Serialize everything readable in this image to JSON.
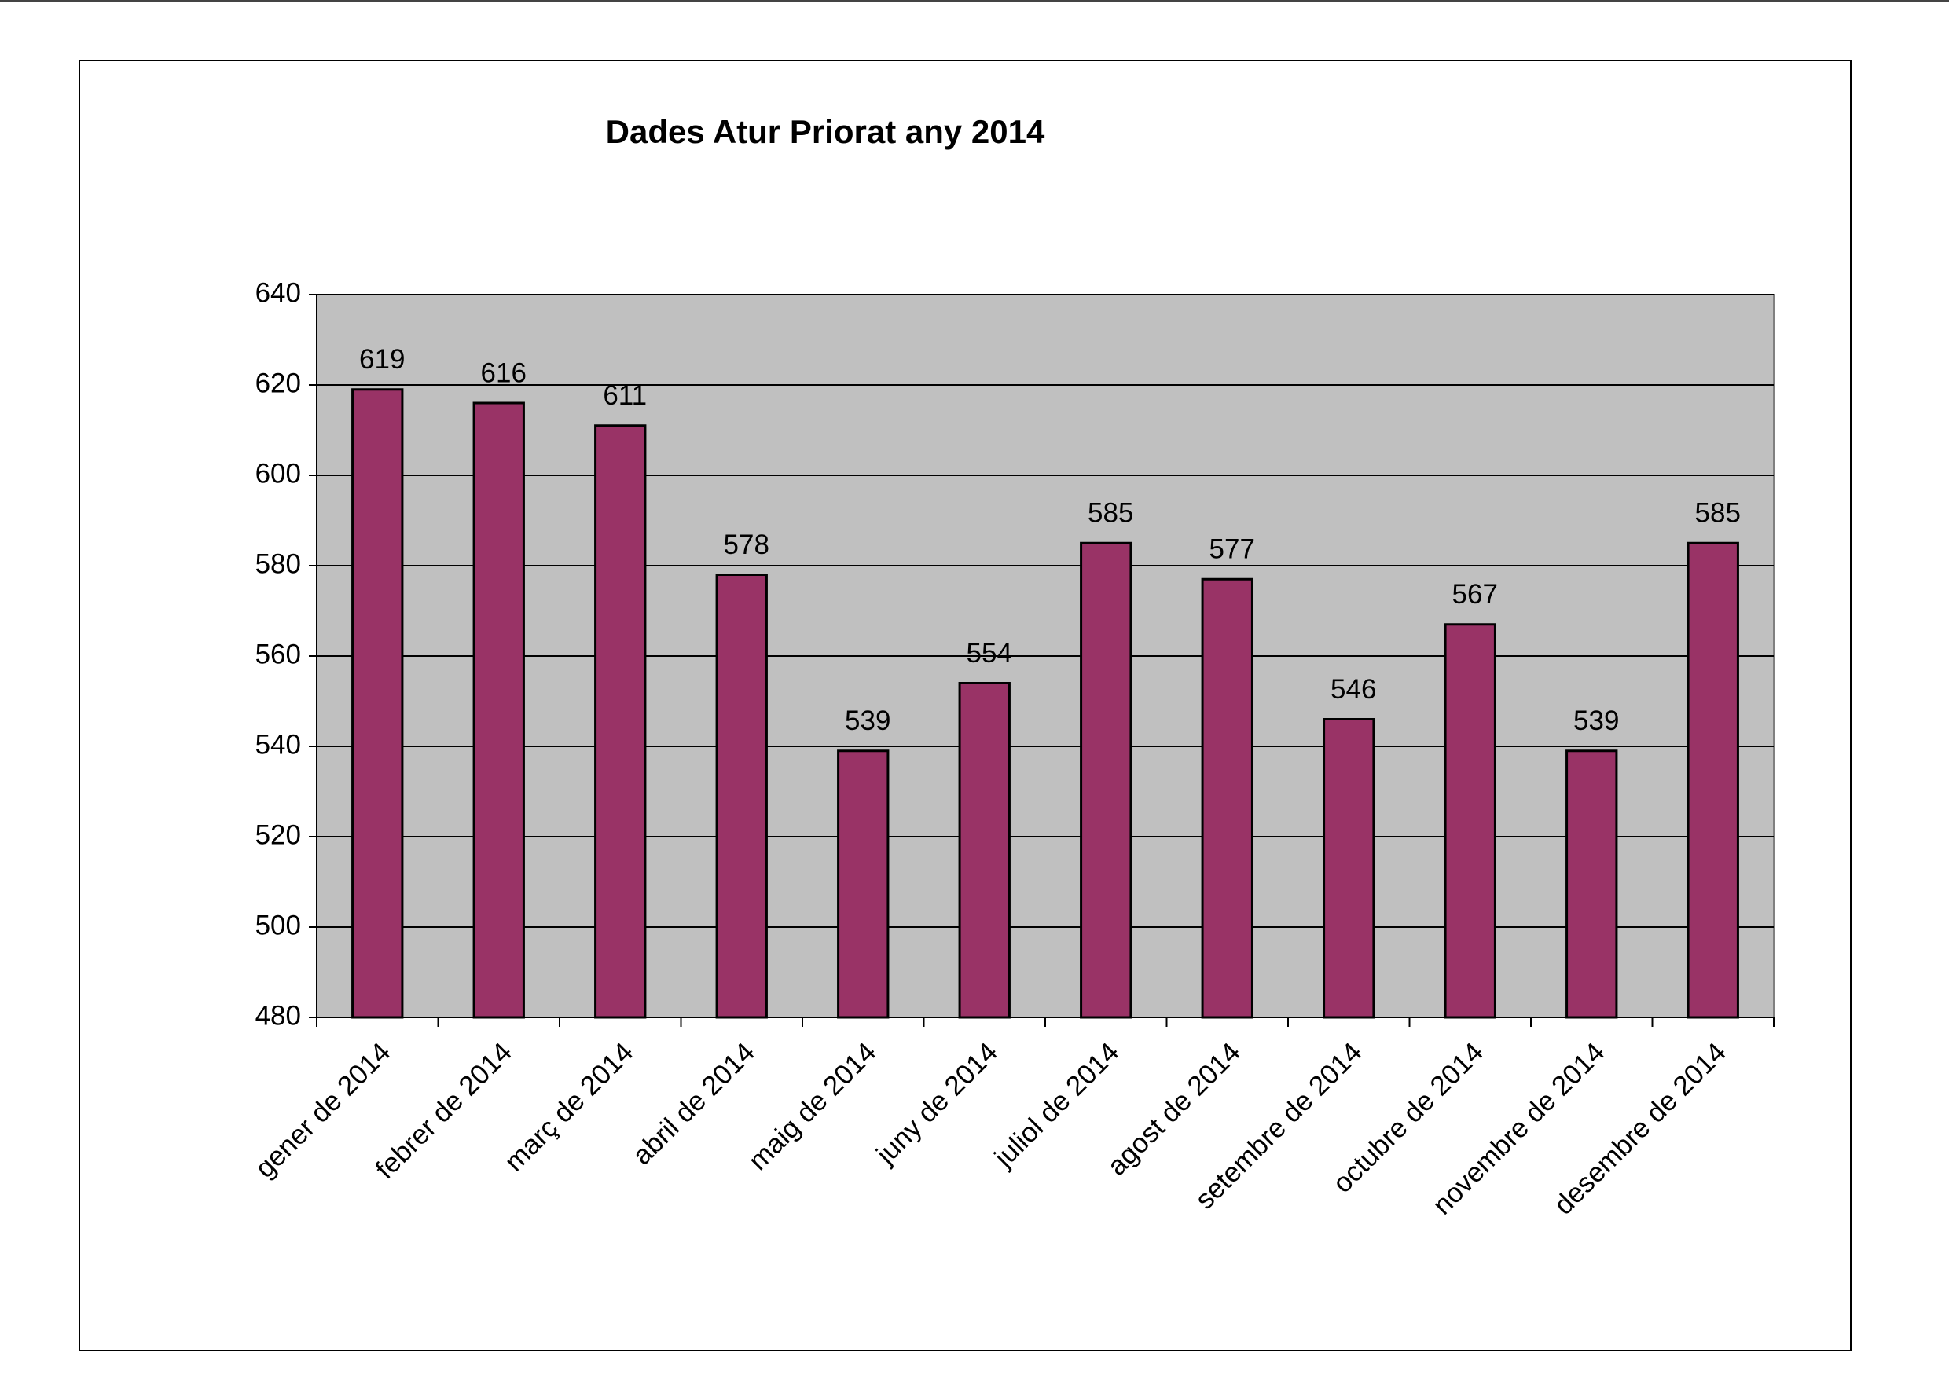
{
  "chart_data": {
    "type": "bar",
    "title": "Dades Atur Priorat any 2014",
    "categories": [
      "gener de 2014",
      "febrer de 2014",
      "març de 2014",
      "abril de 2014",
      "maig de 2014",
      "juny de 2014",
      "juliol de 2014",
      "agost de 2014",
      "setembre de 2014",
      "octubre de 2014",
      "novembre de 2014",
      "desembre de 2014"
    ],
    "values": [
      619,
      616,
      611,
      578,
      539,
      554,
      585,
      577,
      546,
      567,
      539,
      585
    ],
    "color": "#993366",
    "ylim": [
      480,
      640
    ],
    "yticks": [
      480,
      500,
      520,
      540,
      560,
      580,
      600,
      620,
      640
    ],
    "grid": true
  }
}
